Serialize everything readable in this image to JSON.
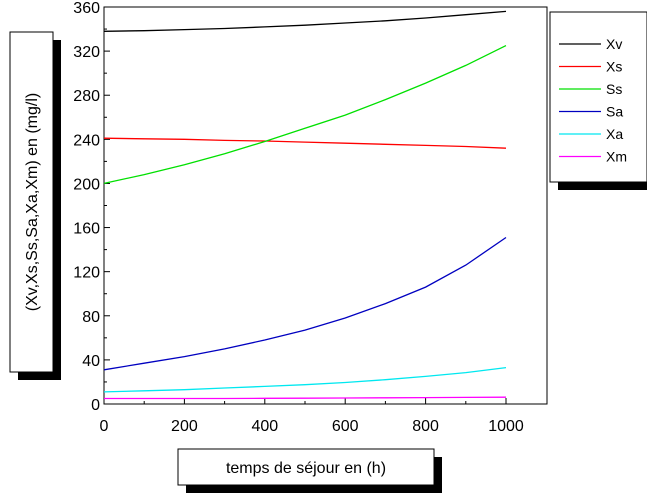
{
  "chart_data": {
    "type": "line",
    "title": "",
    "xlabel": "temps de séjour en (h)",
    "ylabel": "(Xv,Xs,Ss,Sa,Xa,Xm) en (mg/l)",
    "xlim": [
      0,
      1000
    ],
    "ylim": [
      0,
      360
    ],
    "xticks": [
      0,
      200,
      400,
      600,
      800,
      1000
    ],
    "yticks": [
      0,
      40,
      80,
      120,
      160,
      200,
      240,
      280,
      320,
      360
    ],
    "grid": false,
    "legend_position": "top-right",
    "x": [
      0,
      100,
      200,
      300,
      400,
      500,
      600,
      700,
      800,
      900,
      1000
    ],
    "series": [
      {
        "name": "Xv",
        "color": "#000000",
        "values": [
          338,
          338.5,
          339.5,
          340.5,
          342,
          343.5,
          345.5,
          347.5,
          350,
          353,
          356
        ]
      },
      {
        "name": "Xs",
        "color": "#ff0000",
        "values": [
          241,
          240.5,
          240,
          239,
          238.5,
          237.5,
          236.5,
          235.5,
          234.5,
          233.5,
          232
        ]
      },
      {
        "name": "Ss",
        "color": "#00e000",
        "values": [
          200,
          208,
          217,
          227,
          238,
          250,
          262,
          276,
          291,
          307,
          325
        ]
      },
      {
        "name": "Sa",
        "color": "#0000c0",
        "values": [
          31,
          37,
          43,
          50,
          58,
          67,
          78,
          91,
          106,
          126,
          151
        ]
      },
      {
        "name": "Xa",
        "color": "#00e8f0",
        "values": [
          11,
          12,
          13,
          14.5,
          16,
          17.5,
          19.5,
          22,
          25,
          28.5,
          33
        ]
      },
      {
        "name": "Xm",
        "color": "#ff00ff",
        "values": [
          5,
          5,
          5,
          5,
          5.2,
          5.3,
          5.4,
          5.6,
          5.8,
          6,
          6.2
        ]
      }
    ]
  }
}
